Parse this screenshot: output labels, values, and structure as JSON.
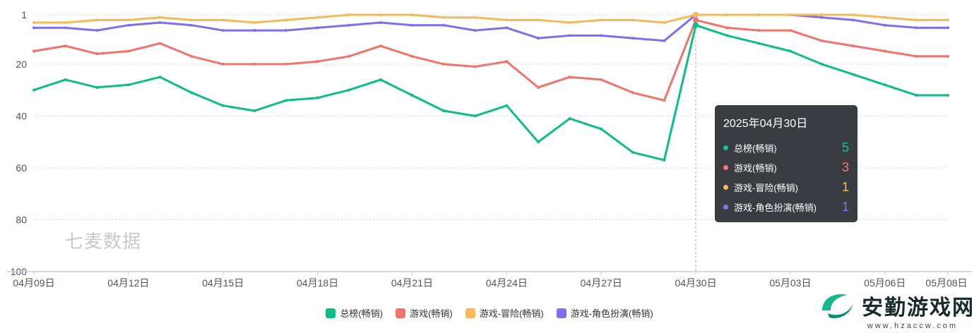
{
  "chart_data": {
    "type": "line",
    "x": [
      "04月09日",
      "04月10日",
      "04月11日",
      "04月12日",
      "04月13日",
      "04月14日",
      "04月15日",
      "04月16日",
      "04月17日",
      "04月18日",
      "04月19日",
      "04月20日",
      "04月21日",
      "04月22日",
      "04月23日",
      "04月24日",
      "04月25日",
      "04月26日",
      "04月27日",
      "04月28日",
      "04月29日",
      "04月30日",
      "05月01日",
      "05月02日",
      "05月03日",
      "05月04日",
      "05月05日",
      "05月06日",
      "05月07日",
      "05月08日"
    ],
    "x_tick_labels": [
      "04月09日",
      "04月12日",
      "04月15日",
      "04月18日",
      "04月21日",
      "04月24日",
      "04月27日",
      "04月30日",
      "05月03日",
      "05月06日",
      "05月08日"
    ],
    "y_tick_labels": [
      "1",
      "20",
      "40",
      "60",
      "80",
      "100"
    ],
    "y_ticks": [
      1,
      20,
      40,
      60,
      80,
      100
    ],
    "ylim": [
      1,
      100
    ],
    "y_inverted": true,
    "grid": true,
    "legend_position": "bottom",
    "series": [
      {
        "name": "总榜(畅销)",
        "color": "#0bbd87",
        "values": [
          30,
          26,
          29,
          28,
          25,
          31,
          36,
          38,
          34,
          33,
          30,
          26,
          32,
          38,
          40,
          36,
          50,
          41,
          45,
          54,
          57,
          5,
          9,
          12,
          15,
          20,
          24,
          28,
          32,
          32
        ]
      },
      {
        "name": "游戏(畅销)",
        "color": "#f2736a",
        "values": [
          15,
          13,
          16,
          15,
          12,
          17,
          20,
          20,
          20,
          19,
          17,
          13,
          17,
          20,
          21,
          19,
          29,
          25,
          26,
          31,
          34,
          3,
          6,
          7,
          7,
          11,
          13,
          15,
          17,
          17
        ]
      },
      {
        "name": "游戏-冒险(畅销)",
        "color": "#f5b95a",
        "values": [
          4,
          4,
          3,
          3,
          2,
          3,
          3,
          4,
          3,
          2,
          1,
          1,
          1,
          2,
          2,
          3,
          3,
          4,
          3,
          3,
          4,
          1,
          1,
          1,
          1,
          1,
          1,
          2,
          3,
          3
        ]
      },
      {
        "name": "游戏-角色扮演(畅销)",
        "color": "#7e6ef0",
        "values": [
          6,
          6,
          7,
          5,
          4,
          5,
          7,
          7,
          7,
          6,
          5,
          4,
          5,
          5,
          7,
          6,
          10,
          9,
          9,
          10,
          11,
          1,
          1,
          1,
          1,
          2,
          3,
          5,
          6,
          6
        ]
      }
    ],
    "tooltip": {
      "title": "2025年04月30日",
      "index": 21,
      "rows": [
        {
          "name": "总榜(畅销)",
          "value": "5",
          "color": "#0bbd87"
        },
        {
          "name": "游戏(畅销)",
          "value": "3",
          "color": "#f2736a"
        },
        {
          "name": "游戏-冒险(畅销)",
          "value": "1",
          "color": "#f5b95a"
        },
        {
          "name": "游戏-角色扮演(畅销)",
          "value": "1",
          "color": "#7e6ef0"
        }
      ]
    }
  },
  "watermark": "七麦数据",
  "corner_logo": {
    "text": "安勤游戏网",
    "url": "www.hzaccw.com"
  }
}
